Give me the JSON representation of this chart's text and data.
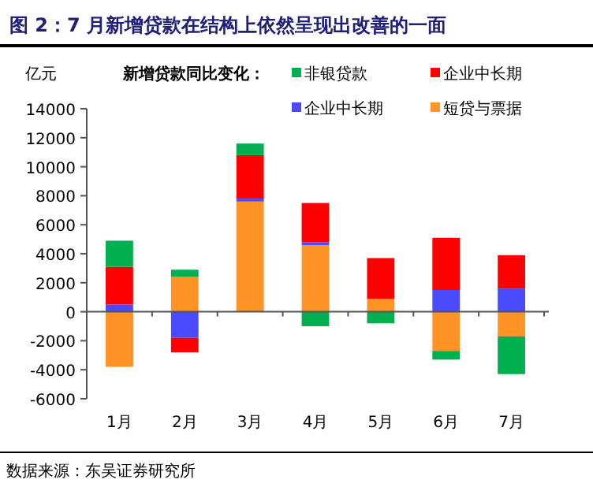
{
  "chart_data": {
    "type": "bar",
    "stacked": true,
    "title": "图 2：7 月新增贷款在结构上依然呈现出改善的一面",
    "ylabel": "亿元",
    "legend_title": "新增贷款同比变化：",
    "categories": [
      "1月",
      "2月",
      "3月",
      "4月",
      "5月",
      "6月",
      "7月"
    ],
    "series": [
      {
        "name": "短贷与票据",
        "color": "#ff9326",
        "values": [
          -3800,
          2400,
          7600,
          4600,
          900,
          -2700,
          -1700
        ]
      },
      {
        "name": "企业中长期",
        "color": "#4a4aff",
        "values": [
          500,
          -1800,
          200,
          200,
          0,
          1500,
          1600
        ]
      },
      {
        "name": "企业中长期",
        "color": "#ff0000",
        "values": [
          2600,
          -1000,
          3000,
          2700,
          2800,
          3600,
          2300
        ]
      },
      {
        "name": "非银贷款",
        "color": "#00b050",
        "values": [
          1800,
          500,
          800,
          -1000,
          -800,
          -600,
          -2600
        ]
      }
    ],
    "ylim": [
      -6000,
      14000
    ],
    "yticks": [
      -6000,
      -4000,
      -2000,
      0,
      2000,
      4000,
      6000,
      8000,
      10000,
      12000,
      14000
    ],
    "legend": "top",
    "annotations": [
      "数据来源：东吴证券研究所"
    ]
  }
}
